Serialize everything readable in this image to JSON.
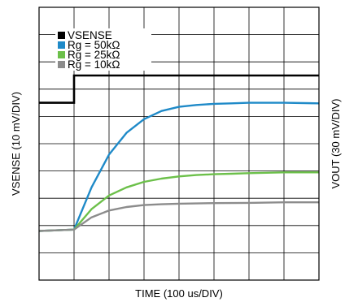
{
  "chart_data": {
    "type": "line",
    "xlabel": "TIME (100 us/DIV)",
    "ylabel": "VSENSE (10 mV/DIV)",
    "ylabel_right": "VOUT (30 mV/DIV)",
    "x_divisions": 8,
    "y_divisions": 10,
    "xlim": [
      0,
      8
    ],
    "ylim": [
      0,
      10
    ],
    "grid": true,
    "legend_position": "top-left",
    "series": [
      {
        "name": "VSENSE",
        "color": "#000000",
        "x": [
          0,
          1.0,
          1.0,
          8
        ],
        "y": [
          6.5,
          6.5,
          7.5,
          7.5
        ]
      },
      {
        "name": "Rg = 50kΩ",
        "color": "#1f8ac8",
        "x": [
          0,
          1.0,
          1.5,
          2.0,
          2.5,
          3.0,
          3.5,
          4.0,
          4.5,
          5.0,
          5.5,
          6.0,
          6.5,
          7.0,
          8.0
        ],
        "y": [
          1.8,
          1.85,
          3.4,
          4.6,
          5.4,
          5.9,
          6.2,
          6.35,
          6.42,
          6.46,
          6.48,
          6.5,
          6.5,
          6.5,
          6.48
        ]
      },
      {
        "name": "Rg = 25kΩ",
        "color": "#6cc04a",
        "x": [
          0,
          1.0,
          1.5,
          2.0,
          2.5,
          3.0,
          3.5,
          4.0,
          4.5,
          5.0,
          5.5,
          6.0,
          7.0,
          8.0
        ],
        "y": [
          1.8,
          1.85,
          2.6,
          3.1,
          3.4,
          3.6,
          3.72,
          3.8,
          3.85,
          3.88,
          3.9,
          3.92,
          3.95,
          3.95
        ]
      },
      {
        "name": "Rg = 10kΩ",
        "color": "#8c8c8c",
        "x": [
          0,
          1.0,
          1.5,
          2.0,
          2.5,
          3.0,
          3.5,
          4.0,
          5.0,
          6.0,
          7.0,
          8.0
        ],
        "y": [
          1.8,
          1.85,
          2.3,
          2.55,
          2.68,
          2.75,
          2.78,
          2.8,
          2.82,
          2.83,
          2.85,
          2.85
        ]
      }
    ]
  }
}
